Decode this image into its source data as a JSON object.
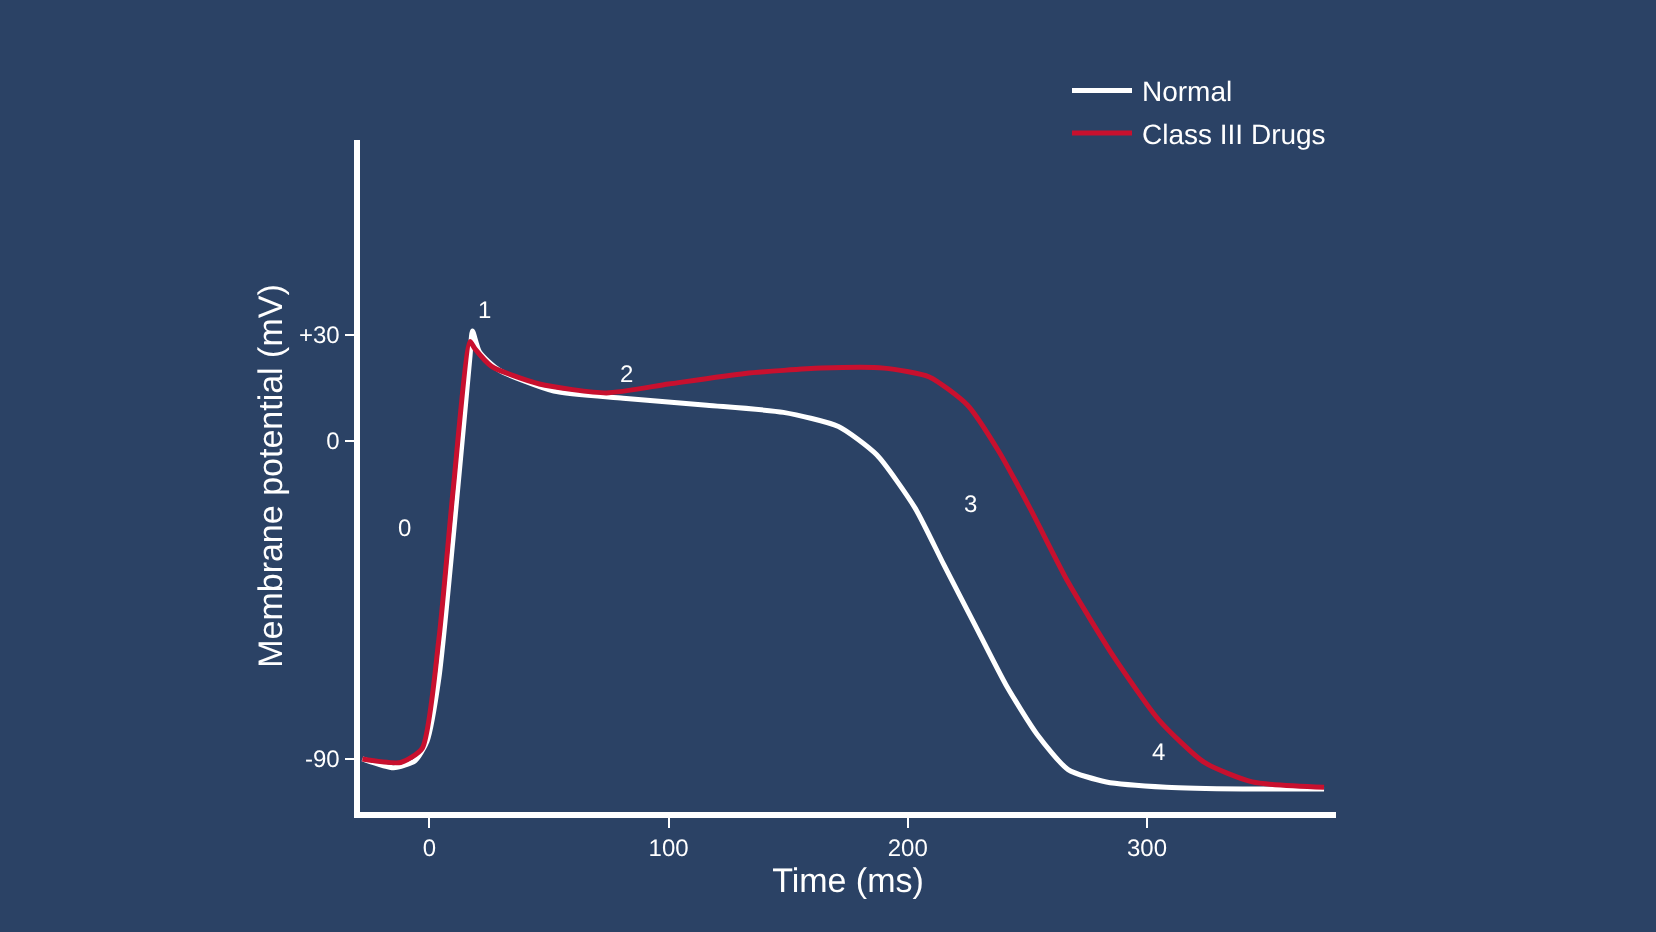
{
  "chart_data": {
    "type": "line",
    "xlabel": "Time (ms)",
    "ylabel": "Membrane potential (mV)",
    "xlim": [
      -29,
      379
    ],
    "ylim": [
      -105,
      85
    ],
    "xticks": [
      0,
      100,
      200,
      300
    ],
    "yticks": [
      -90,
      0,
      {
        "value": 30,
        "label": "+30"
      }
    ],
    "grid": false,
    "legend": "top right",
    "marker": "none",
    "line_style": "solid",
    "series": [
      {
        "name": "Normal",
        "color": "#ffffff",
        "x": [
          -28,
          -15,
          -6,
          -1,
          4,
          10,
          17,
          18,
          21,
          29,
          52,
          81,
          116,
          148,
          171,
          187,
          203,
          215,
          228,
          241,
          254,
          267,
          283,
          308,
          340,
          374
        ],
        "values": [
          -90,
          -92.5,
          -90.5,
          -85,
          -67,
          -27,
          24,
          31,
          25,
          20,
          14,
          12,
          10,
          8,
          4,
          -4,
          -19,
          -35,
          -52,
          -69,
          -83,
          -93,
          -96.5,
          -98,
          -98.5,
          -98.5
        ]
      },
      {
        "name": "Class III Drugs",
        "color": "#c8102e",
        "x": [
          -28,
          -12,
          -3,
          4,
          10,
          17,
          19,
          26,
          46,
          74,
          100,
          132,
          164,
          190,
          209,
          225,
          238,
          251,
          267,
          286,
          305,
          324,
          344,
          374
        ],
        "values": [
          -90,
          -91,
          -87,
          -56,
          -13.5,
          28,
          26,
          21,
          16,
          13.5,
          16,
          19,
          20.5,
          20.5,
          18,
          10,
          -3,
          -19,
          -40,
          -61,
          -79,
          -91,
          -96.5,
          -98
        ]
      }
    ],
    "annotations": [
      {
        "text": "0",
        "x": 10,
        "y": -27
      },
      {
        "text": "1",
        "x": 18,
        "y": 31
      },
      {
        "text": "2",
        "x": 81,
        "y": 12
      },
      {
        "text": "3",
        "x": 203,
        "y": -19
      },
      {
        "text": "4",
        "x": 305,
        "y": -79
      }
    ]
  }
}
